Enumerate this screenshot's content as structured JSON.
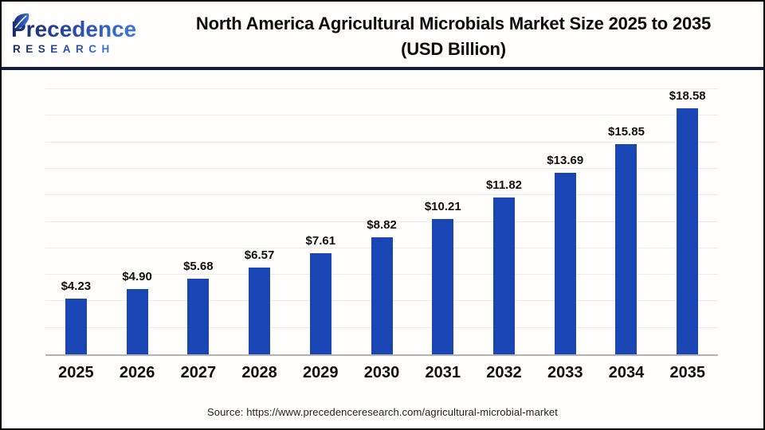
{
  "header": {
    "logo": {
      "brand": "Precedence",
      "sub": "RESEARCH"
    },
    "title_line1": "North America Agricultural Microbials Market Size 2025 to 2035",
    "title_line2": "(USD Billion)"
  },
  "chart_data": {
    "type": "bar",
    "title": "North America Agricultural Microbials Market Size 2025 to 2035 (USD Billion)",
    "categories": [
      "2025",
      "2026",
      "2027",
      "2028",
      "2029",
      "2030",
      "2031",
      "2032",
      "2033",
      "2034",
      "2035"
    ],
    "values": [
      4.23,
      4.9,
      5.68,
      6.57,
      7.61,
      8.82,
      10.21,
      11.82,
      13.69,
      15.85,
      18.58
    ],
    "labels": [
      "$4.23",
      "$4.90",
      "$5.68",
      "$6.57",
      "$7.61",
      "$8.82",
      "$10.21",
      "$11.82",
      "$13.69",
      "$15.85",
      "$18.58"
    ],
    "xlabel": "",
    "ylabel": "",
    "ylim": [
      0,
      20
    ],
    "gridline_step": 2,
    "grid": true,
    "legend": false,
    "bar_color": "#1946b4",
    "axis_color": "#b3b3b3",
    "gridline_color": "#ececec"
  },
  "footer": {
    "source": "Source: https://www.precedenceresearch.com/agricultural-microbial-market"
  }
}
